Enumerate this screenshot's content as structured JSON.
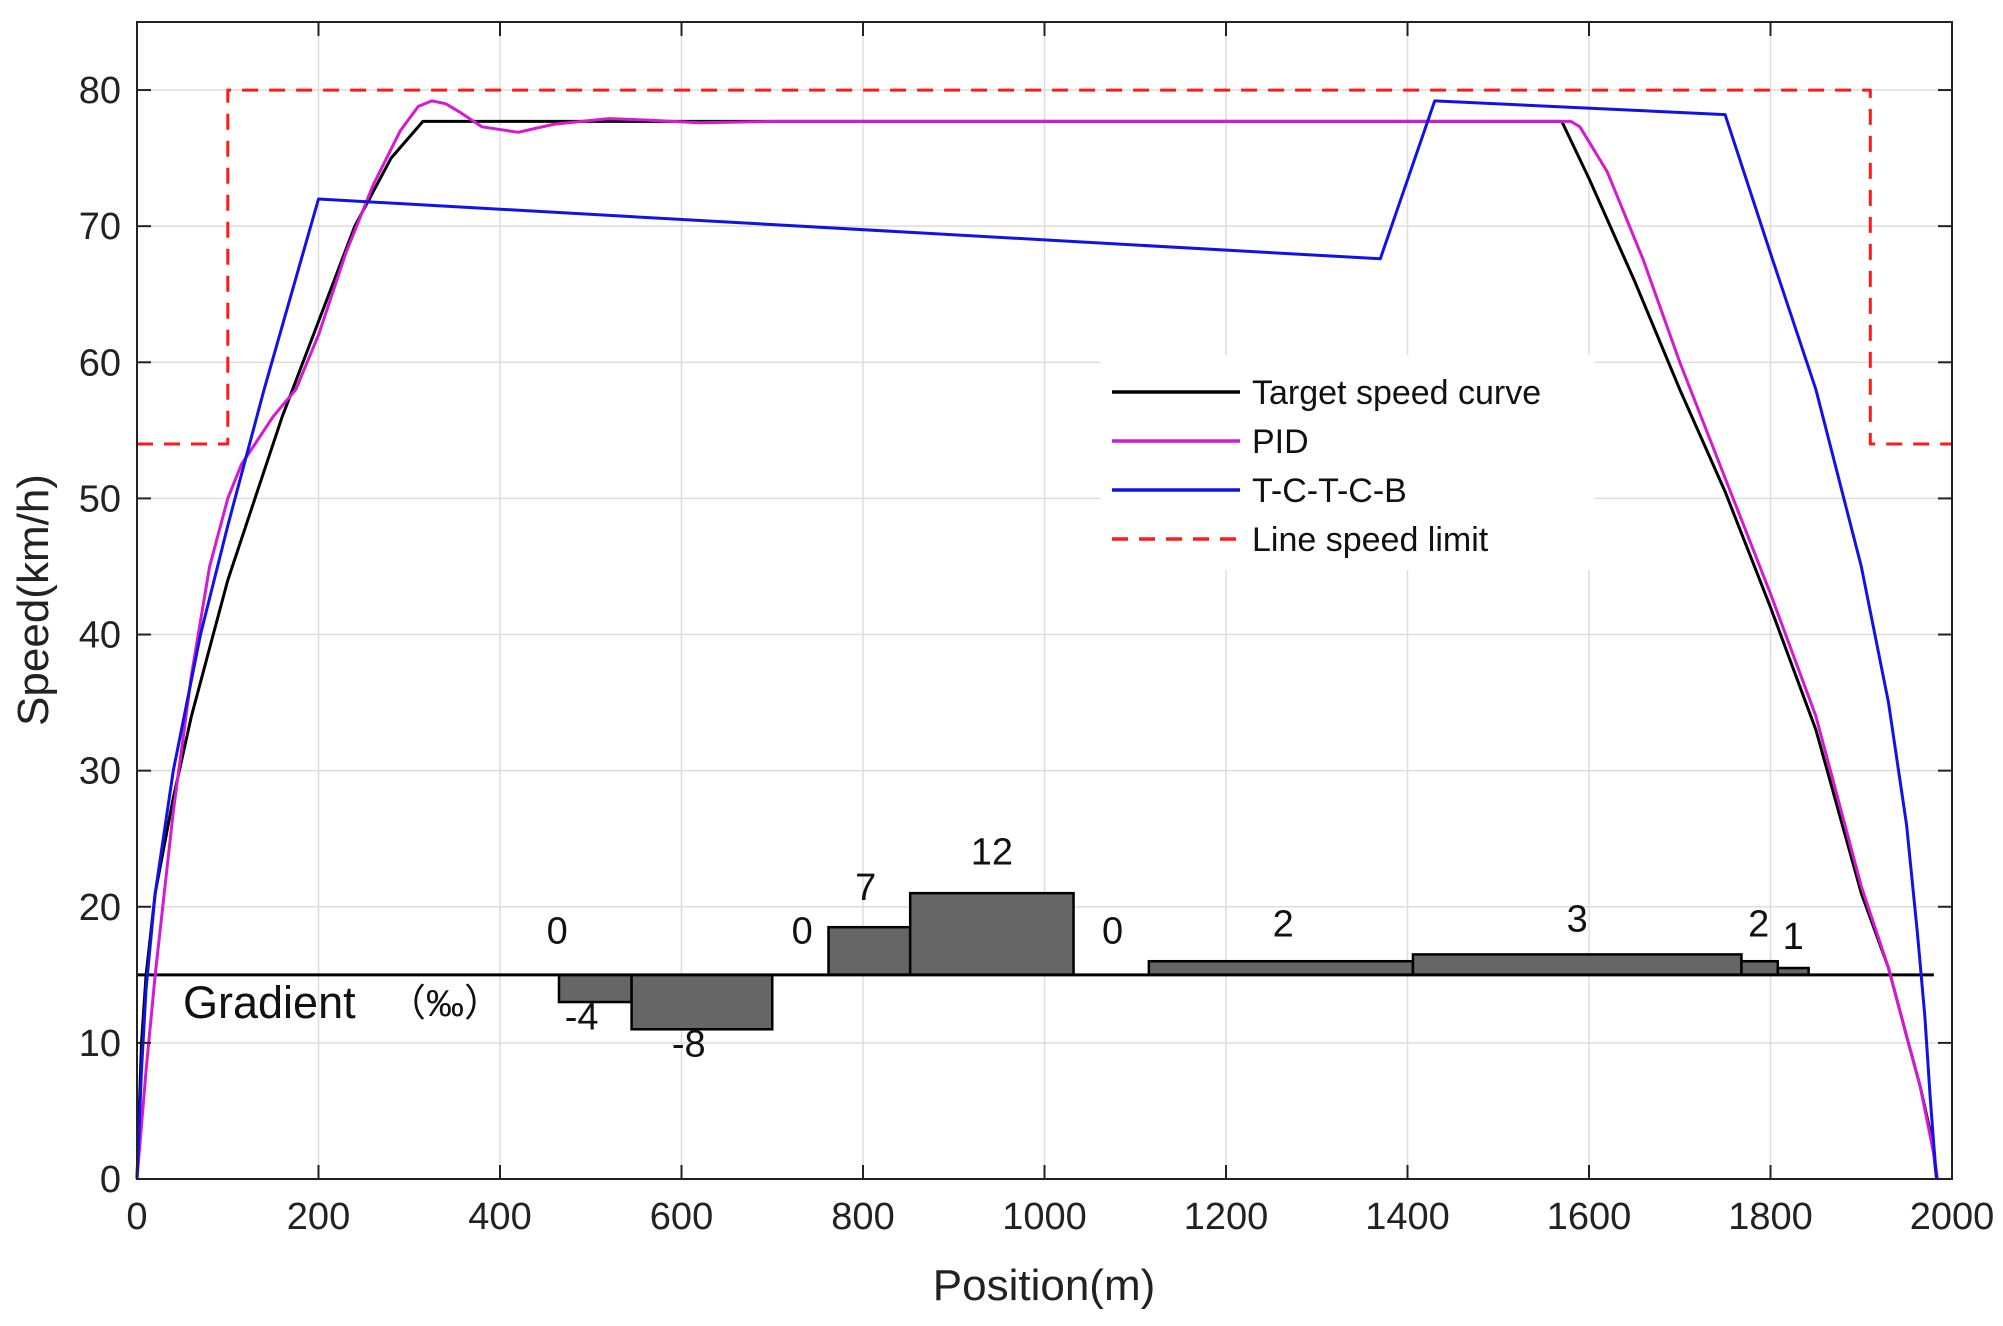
{
  "chart_data": {
    "type": "line",
    "title": "",
    "xlabel": "Position(m)",
    "ylabel": "Speed(km/h)",
    "xlim": [
      0,
      2000
    ],
    "ylim": [
      0,
      85
    ],
    "xticks": [
      0,
      200,
      400,
      600,
      800,
      1000,
      1200,
      1400,
      1600,
      1800,
      2000
    ],
    "yticks": [
      0,
      10,
      20,
      30,
      40,
      50,
      60,
      70,
      80
    ],
    "grid": true,
    "legend_position": "upper-right-center",
    "colors": {
      "target": "#000000",
      "pid": "#d61ad1",
      "tctcb": "#1212e6",
      "limit": "#ff1a1a",
      "gradient_fill": "#666666"
    },
    "series": [
      {
        "name": "Target speed curve",
        "style": "solid",
        "x": [
          0,
          5,
          10,
          20,
          40,
          60,
          80,
          100,
          130,
          160,
          200,
          240,
          280,
          315,
          1570,
          1600,
          1650,
          1700,
          1750,
          1800,
          1850,
          1900,
          1930,
          1950,
          1965,
          1975,
          1980,
          1983
        ],
        "y": [
          0,
          10,
          15,
          21,
          28,
          34,
          39,
          44,
          50,
          56,
          63,
          70,
          75,
          77.7,
          77.7,
          73.5,
          66,
          58,
          50.5,
          42,
          33,
          21,
          15.5,
          10.5,
          6.8,
          3.8,
          1.8,
          0
        ]
      },
      {
        "name": "PID",
        "style": "solid",
        "x": [
          0,
          10,
          20,
          40,
          60,
          80,
          100,
          115,
          130,
          150,
          175,
          200,
          230,
          260,
          290,
          310,
          325,
          340,
          355,
          380,
          420,
          460,
          520,
          560,
          620,
          700,
          1000,
          1580,
          1590,
          1620,
          1660,
          1700,
          1750,
          1800,
          1850,
          1900,
          1930,
          1950,
          1965,
          1975,
          1980,
          1984
        ],
        "y": [
          0,
          8,
          15,
          27,
          37,
          45,
          50,
          52.5,
          54,
          56,
          58,
          62,
          68,
          73,
          77,
          78.8,
          79.2,
          79,
          78.4,
          77.3,
          76.9,
          77.5,
          77.9,
          77.8,
          77.6,
          77.7,
          77.7,
          77.7,
          77.3,
          74,
          67.5,
          60,
          51.5,
          43,
          34,
          21.5,
          15.5,
          10.5,
          6.8,
          3.5,
          1.8,
          0
        ]
      },
      {
        "name": "T-C-T-C-B",
        "style": "solid",
        "x": [
          0,
          5,
          10,
          20,
          40,
          70,
          100,
          140,
          170,
          200,
          1370,
          1430,
          1750,
          1800,
          1850,
          1900,
          1930,
          1950,
          1962,
          1970,
          1976,
          1980,
          1983
        ],
        "y": [
          0,
          8,
          14,
          21,
          30,
          40,
          48,
          58,
          65,
          72,
          67.6,
          79.2,
          78.2,
          68,
          58,
          45,
          35,
          26,
          18,
          12,
          6,
          2.5,
          0
        ]
      },
      {
        "name": "Line speed limit",
        "style": "dashed",
        "x": [
          0,
          100,
          100,
          1910,
          1910,
          2000
        ],
        "y": [
          54,
          54,
          80,
          80,
          54,
          54
        ]
      }
    ],
    "legend": [
      "Target speed curve",
      "PID",
      "T-C-T-C-B",
      "Line speed limit"
    ],
    "annotations": {
      "gradient_label": "Gradient",
      "gradient_unit": "（‰）",
      "baseline_speed": 15,
      "gradient_x_end": 1980,
      "scale_per_permille": 0.5,
      "segments": [
        {
          "x0": 0,
          "x1": 465,
          "value": 0,
          "label": "0",
          "label_x": 463,
          "label_y": 17.3
        },
        {
          "x0": 465,
          "x1": 545,
          "value": -4,
          "label": "-4",
          "label_x": 490,
          "label_y": 11
        },
        {
          "x0": 545,
          "x1": 700,
          "value": -8,
          "label": "-8",
          "label_x": 608,
          "label_y": 9
        },
        {
          "x0": 700,
          "x1": 762,
          "value": 0,
          "label": "0",
          "label_x": 733,
          "label_y": 17.3
        },
        {
          "x0": 762,
          "x1": 852,
          "value": 7,
          "label": "7",
          "label_x": 803,
          "label_y": 20.5
        },
        {
          "x0": 852,
          "x1": 1032,
          "value": 12,
          "label": "12",
          "label_x": 942,
          "label_y": 23.1
        },
        {
          "x0": 1032,
          "x1": 1115,
          "value": 0,
          "label": "0",
          "label_x": 1075,
          "label_y": 17.3
        },
        {
          "x0": 1115,
          "x1": 1406,
          "value": 2,
          "label": "2",
          "label_x": 1263,
          "label_y": 17.8
        },
        {
          "x0": 1406,
          "x1": 1768,
          "value": 3,
          "label": "3",
          "label_x": 1587,
          "label_y": 18.2
        },
        {
          "x0": 1768,
          "x1": 1808,
          "value": 2,
          "label": "2",
          "label_x": 1787,
          "label_y": 17.8
        },
        {
          "x0": 1808,
          "x1": 1842,
          "value": 1,
          "label": "1",
          "label_x": 1825,
          "label_y": 16.9
        }
      ]
    }
  }
}
